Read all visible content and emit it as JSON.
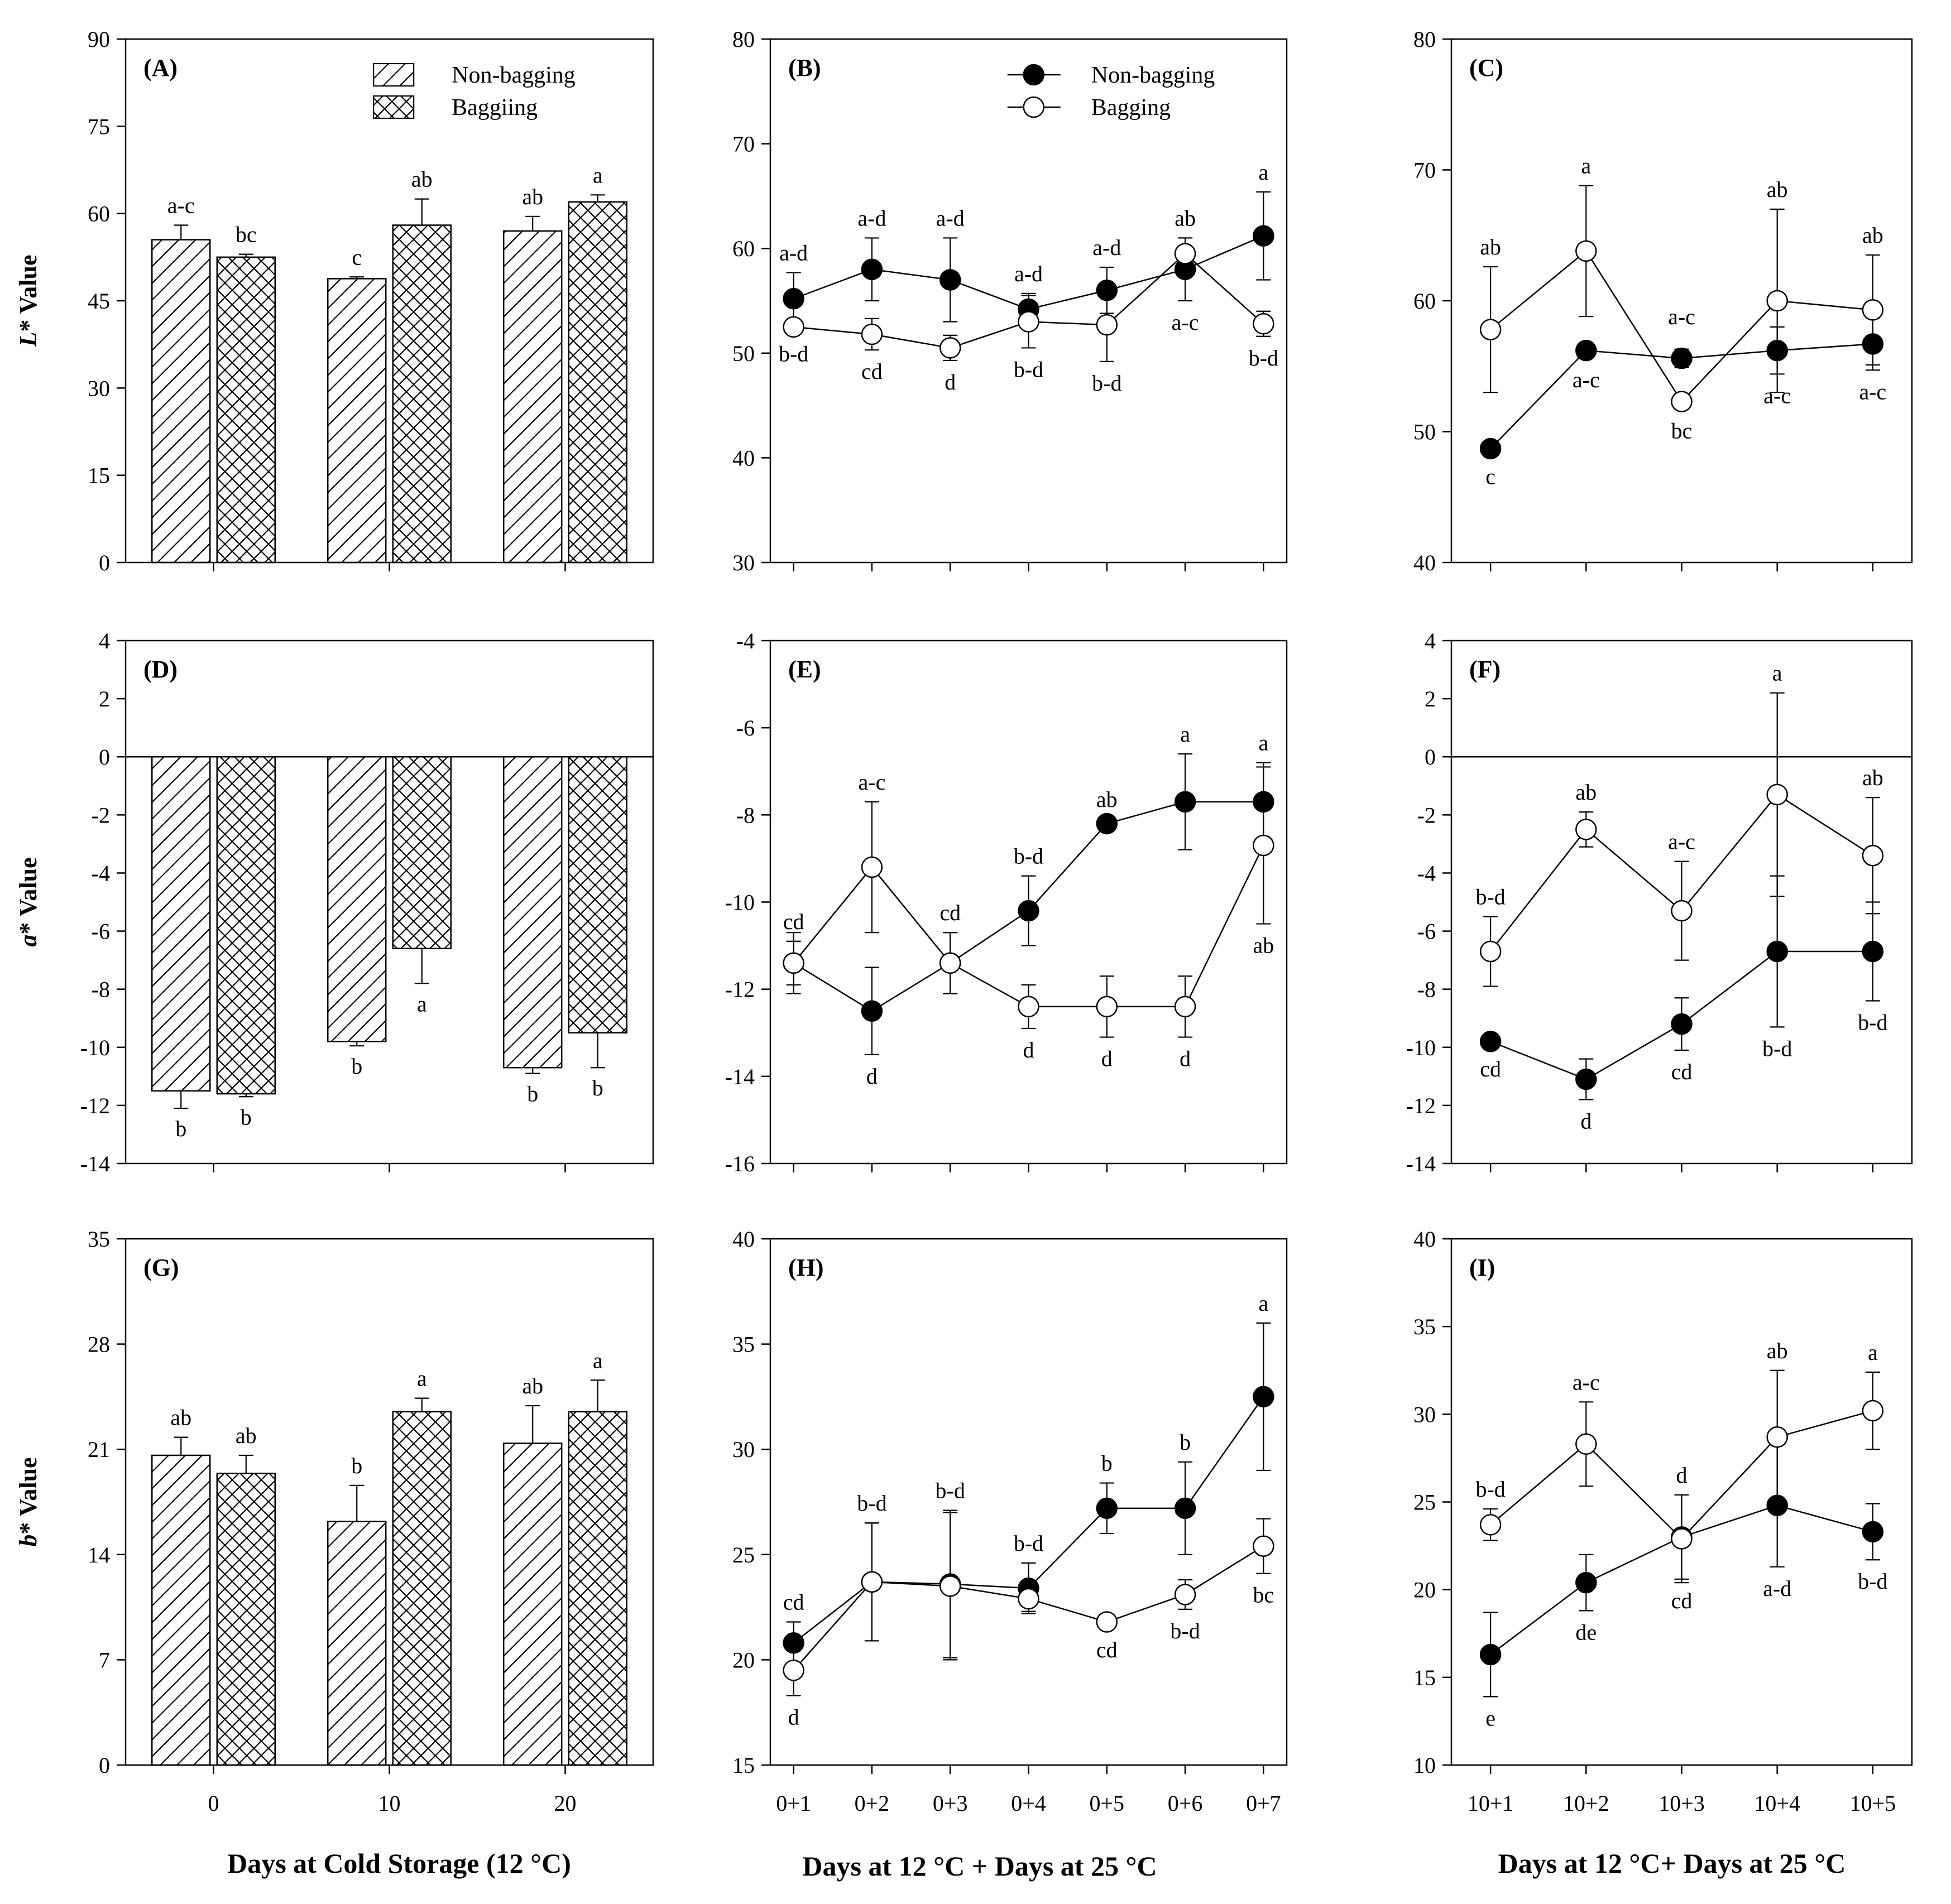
{
  "figure": {
    "x_titles": {
      "left": "Days at Cold Storage (12 °C)",
      "middle": "Days at 12 °C + Days at 25 °C",
      "right": "Days at 12 °C+ Days at 25 °C"
    },
    "y_titles": {
      "row1_prefix": "L",
      "row2_prefix": "a",
      "row3_prefix": "b",
      "suffix": "* Value"
    }
  },
  "colors": {
    "axis": "#000000",
    "filled_marker": "#000000",
    "open_marker": "#ffffff"
  },
  "chart_data": [
    {
      "id": "A",
      "panel_label": "(A)",
      "type": "bar",
      "ylim": [
        0,
        90
      ],
      "yticks": [
        0,
        15,
        30,
        45,
        60,
        75,
        90
      ],
      "categories": [
        "0",
        "10",
        "20"
      ],
      "legend": [
        "Non-bagging",
        "Baggiing"
      ],
      "series": [
        {
          "name": "Non-bagging",
          "pattern": "diagonal",
          "values": [
            55.5,
            48.8,
            57
          ],
          "err": [
            2.5,
            0.3,
            2.5
          ],
          "letters": [
            "a-c",
            "c",
            "ab"
          ],
          "letter_pos": [
            "above",
            "above",
            "above"
          ]
        },
        {
          "name": "Baggiing",
          "pattern": "cross",
          "values": [
            52.5,
            58,
            62
          ],
          "err": [
            0.5,
            4.5,
            1.2
          ],
          "letters": [
            "bc",
            "ab",
            "a"
          ],
          "letter_pos": [
            "above",
            "above",
            "above"
          ]
        }
      ]
    },
    {
      "id": "B",
      "panel_label": "(B)",
      "type": "line",
      "ylim": [
        30,
        80
      ],
      "yticks": [
        30,
        40,
        50,
        60,
        70,
        80
      ],
      "categories": [
        "0+1",
        "0+2",
        "0+3",
        "0+4",
        "0+5",
        "0+6",
        "0+7"
      ],
      "legend": [
        "Non-bagging",
        "Bagging"
      ],
      "series": [
        {
          "name": "Non-bagging",
          "filled": true,
          "values": [
            55.2,
            58,
            57,
            54.2,
            56,
            58,
            61.2
          ],
          "err": [
            2.5,
            3,
            4,
            1.5,
            2.2,
            3,
            4.2
          ],
          "letters": [
            "a-d",
            "a-d",
            "a-d",
            "a-d",
            "a-d",
            "a-c",
            "a"
          ],
          "letter_pos": [
            "above",
            "above",
            "above",
            "above",
            "above",
            "below",
            "above"
          ]
        },
        {
          "name": "Bagging",
          "filled": false,
          "values": [
            52.5,
            51.8,
            50.5,
            53,
            52.7,
            59.5,
            52.8
          ],
          "err": [
            0.5,
            1.5,
            1.2,
            2.5,
            3.5,
            1.5,
            1.2
          ],
          "letters": [
            "b-d",
            "cd",
            "d",
            "b-d",
            "b-d",
            "ab",
            "b-d"
          ],
          "letter_pos": [
            "below",
            "below",
            "below",
            "below",
            "below",
            "above",
            "below"
          ]
        }
      ]
    },
    {
      "id": "C",
      "panel_label": "(C)",
      "type": "line",
      "ylim": [
        40,
        80
      ],
      "yticks": [
        40,
        50,
        60,
        70,
        80
      ],
      "categories": [
        "10+1",
        "10+2",
        "10+3",
        "10+4",
        "10+5"
      ],
      "series": [
        {
          "name": "Non-bagging",
          "filled": true,
          "values": [
            48.7,
            56.2,
            55.6,
            56.2,
            56.7
          ],
          "err": [
            0.5,
            0.6,
            0.7,
            1.8,
            2
          ],
          "letters": [
            "c",
            "a-c",
            "",
            "a-c",
            "a-c"
          ],
          "letter_pos": [
            "below",
            "below",
            "below",
            "below",
            "below"
          ]
        },
        {
          "name": "Bagging",
          "filled": false,
          "values": [
            57.8,
            63.8,
            52.3,
            60,
            59.3
          ],
          "err": [
            4.8,
            5,
            0.6,
            7,
            4.2
          ],
          "letters": [
            "ab",
            "a",
            "bc",
            "ab",
            "ab"
          ],
          "letter_pos": [
            "above",
            "above",
            "below",
            "above",
            "above"
          ]
        }
      ],
      "extra_labels": [
        {
          "text": "a-c",
          "cat": 2,
          "value": 58.2
        }
      ]
    },
    {
      "id": "D",
      "panel_label": "(D)",
      "type": "bar",
      "ylim": [
        -14,
        4
      ],
      "yticks": [
        -14,
        -12,
        -10,
        -8,
        -6,
        -4,
        -2,
        0,
        2,
        4
      ],
      "zero_line": true,
      "categories": [
        "0",
        "10",
        "20"
      ],
      "series": [
        {
          "name": "Non-bagging",
          "pattern": "diagonal",
          "values": [
            -11.5,
            -9.8,
            -10.7
          ],
          "err": [
            0.6,
            0.15,
            0.2
          ],
          "letters": [
            "b",
            "b",
            "b"
          ],
          "letter_pos": [
            "below",
            "below",
            "below"
          ]
        },
        {
          "name": "Baggiing",
          "pattern": "cross",
          "values": [
            -11.6,
            -6.6,
            -9.5
          ],
          "err": [
            0.1,
            1.2,
            1.2
          ],
          "letters": [
            "b",
            "a",
            "b"
          ],
          "letter_pos": [
            "below",
            "below",
            "below"
          ]
        }
      ]
    },
    {
      "id": "E",
      "panel_label": "(E)",
      "type": "line",
      "ylim": [
        -16,
        -4
      ],
      "yticks": [
        -16,
        -14,
        -12,
        -10,
        -8,
        -6,
        -4
      ],
      "categories": [
        "0+1",
        "0+2",
        "0+3",
        "0+4",
        "0+5",
        "0+6",
        "0+7"
      ],
      "series": [
        {
          "name": "Non-bagging",
          "filled": true,
          "values": [
            -11.4,
            -12.5,
            -11.4,
            -10.2,
            -8.2,
            -7.7,
            -7.7
          ],
          "err": [
            0.5,
            1,
            0.7,
            0.8,
            0.1,
            1.1,
            0.9
          ],
          "letters": [
            "cd",
            "d",
            "cd",
            "b-d",
            "ab",
            "a",
            "a"
          ],
          "letter_pos": [
            "above",
            "below",
            "above",
            "above",
            "above",
            "above",
            "above"
          ]
        },
        {
          "name": "Bagging",
          "filled": false,
          "values": [
            -11.4,
            -9.2,
            -11.4,
            -12.4,
            -12.4,
            -12.4,
            -8.7
          ],
          "err": [
            0.7,
            1.5,
            0.7,
            0.5,
            0.7,
            0.7,
            1.8
          ],
          "letters": [
            "",
            "a-c",
            "",
            "d",
            "d",
            "d",
            "ab"
          ],
          "letter_pos": [
            "above",
            "above",
            "above",
            "below",
            "below",
            "below",
            "below"
          ]
        }
      ]
    },
    {
      "id": "F",
      "panel_label": "(F)",
      "type": "line",
      "ylim": [
        -14,
        4
      ],
      "yticks": [
        -14,
        -12,
        -10,
        -8,
        -6,
        -4,
        -2,
        0,
        2,
        4
      ],
      "zero_line": true,
      "categories": [
        "10+1",
        "10+2",
        "10+3",
        "10+4",
        "10+5"
      ],
      "series": [
        {
          "name": "Non-bagging",
          "filled": true,
          "values": [
            -9.8,
            -11.1,
            -9.2,
            -6.7,
            -6.7
          ],
          "err": [
            0.2,
            0.7,
            0.9,
            2.6,
            1.7
          ],
          "letters": [
            "cd",
            "d",
            "cd",
            "b-d",
            "b-d"
          ],
          "letter_pos": [
            "below",
            "below",
            "below",
            "below",
            "below"
          ]
        },
        {
          "name": "Bagging",
          "filled": false,
          "values": [
            -6.7,
            -2.5,
            -5.3,
            -1.3,
            -3.4
          ],
          "err": [
            1.2,
            0.6,
            1.7,
            3.5,
            2
          ],
          "letters": [
            "b-d",
            "ab",
            "a-c",
            "a",
            "ab"
          ],
          "letter_pos": [
            "above",
            "above",
            "above",
            "above",
            "above"
          ]
        }
      ]
    },
    {
      "id": "G",
      "panel_label": "(G)",
      "type": "bar",
      "ylim": [
        0,
        35
      ],
      "yticks": [
        0,
        7,
        14,
        21,
        28,
        35
      ],
      "categories": [
        "0",
        "10",
        "20"
      ],
      "series": [
        {
          "name": "Non-bagging",
          "pattern": "diagonal",
          "values": [
            20.6,
            16.2,
            21.4
          ],
          "err": [
            1.2,
            2.4,
            2.5
          ],
          "letters": [
            "ab",
            "b",
            "ab"
          ],
          "letter_pos": [
            "above",
            "above",
            "above"
          ]
        },
        {
          "name": "Baggiing",
          "pattern": "cross",
          "values": [
            19.4,
            23.5,
            23.5
          ],
          "err": [
            1.2,
            0.9,
            2.1
          ],
          "letters": [
            "ab",
            "a",
            "a"
          ],
          "letter_pos": [
            "above",
            "above",
            "above"
          ]
        }
      ]
    },
    {
      "id": "H",
      "panel_label": "(H)",
      "type": "line",
      "ylim": [
        15,
        40
      ],
      "yticks": [
        15,
        20,
        25,
        30,
        35,
        40
      ],
      "categories": [
        "0+1",
        "0+2",
        "0+3",
        "0+4",
        "0+5",
        "0+6",
        "0+7"
      ],
      "series": [
        {
          "name": "Non-bagging",
          "filled": true,
          "values": [
            20.8,
            23.7,
            23.6,
            23.4,
            27.2,
            27.2,
            32.5
          ],
          "err": [
            1,
            2.8,
            3.5,
            1.2,
            1.2,
            2.2,
            3.5
          ],
          "letters": [
            "cd",
            "b-d",
            "b-d",
            "b-d",
            "b",
            "b",
            "a"
          ],
          "letter_pos": [
            "above",
            "above",
            "above",
            "above",
            "above",
            "above",
            "above"
          ]
        },
        {
          "name": "Bagging",
          "filled": false,
          "values": [
            19.5,
            23.7,
            23.5,
            22.9,
            21.8,
            23.1,
            25.4
          ],
          "err": [
            1.2,
            2.8,
            3.5,
            0.6,
            0.3,
            0.7,
            1.3
          ],
          "letters": [
            "d",
            "",
            "",
            "",
            "cd",
            "b-d",
            "bc"
          ],
          "letter_pos": [
            "below",
            "below",
            "below",
            "below",
            "below",
            "below",
            "below"
          ]
        }
      ]
    },
    {
      "id": "I",
      "panel_label": "(I)",
      "type": "line",
      "ylim": [
        10,
        40
      ],
      "yticks": [
        10,
        15,
        20,
        25,
        30,
        35,
        40
      ],
      "categories": [
        "10+1",
        "10+2",
        "10+3",
        "10+4",
        "10+5"
      ],
      "series": [
        {
          "name": "Non-bagging",
          "filled": true,
          "values": [
            16.3,
            20.4,
            23,
            24.8,
            23.3
          ],
          "err": [
            2.4,
            1.6,
            2.4,
            3.5,
            1.6
          ],
          "letters": [
            "e",
            "de",
            "cd",
            "a-d",
            "b-d"
          ],
          "letter_pos": [
            "below",
            "below",
            "below",
            "below",
            "below"
          ]
        },
        {
          "name": "Bagging",
          "filled": false,
          "values": [
            23.7,
            28.3,
            22.9,
            28.7,
            30.2
          ],
          "err": [
            0.9,
            2.4,
            2.5,
            3.8,
            2.2
          ],
          "letters": [
            "b-d",
            "a-c",
            "d",
            "ab",
            "a"
          ],
          "letter_pos": [
            "above",
            "above",
            "above",
            "above",
            "above"
          ]
        }
      ]
    }
  ]
}
